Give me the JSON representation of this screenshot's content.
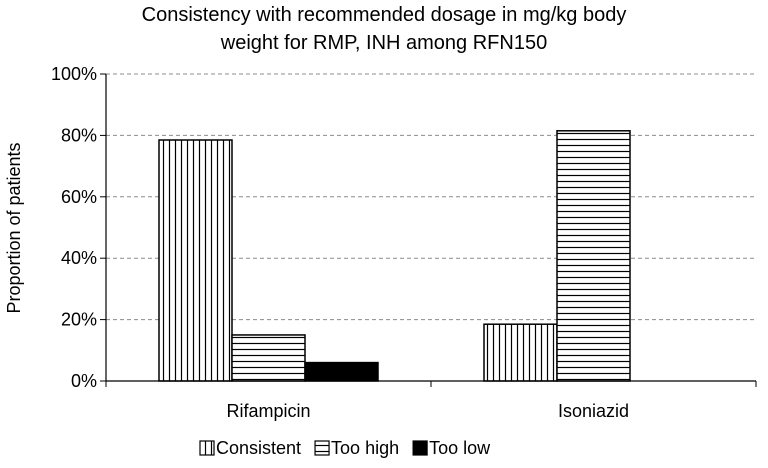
{
  "chart_data": {
    "type": "bar",
    "title": [
      "Consistency with recommended dosage in mg/kg body",
      "weight for RMP, INH among RFN150"
    ],
    "ylabel": "Proportion of patients",
    "xlabel": "",
    "categories": [
      "Rifampicin",
      "Isoniazid"
    ],
    "series": [
      {
        "name": "Consistent",
        "values": [
          78.5,
          18.5
        ],
        "pattern": "vertical-lines"
      },
      {
        "name": "Too high",
        "values": [
          15,
          81.5
        ],
        "pattern": "horizontal-lines"
      },
      {
        "name": "Too low",
        "values": [
          6,
          0
        ],
        "pattern": "solid-black"
      }
    ],
    "ylim": [
      0,
      100
    ],
    "yticks": [
      "0%",
      "20%",
      "40%",
      "60%",
      "80%",
      "100%"
    ],
    "grid": true,
    "legend": "bottom"
  }
}
